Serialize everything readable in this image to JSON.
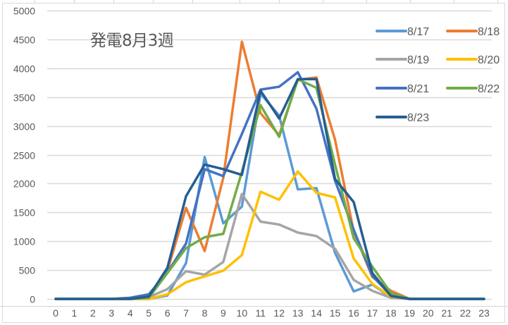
{
  "chart_data": {
    "type": "line",
    "title": "発電8月3週",
    "xlabel": "",
    "ylabel": "",
    "ylim": [
      0,
      5000
    ],
    "yticks": [
      0,
      500,
      1000,
      1500,
      2000,
      2500,
      3000,
      3500,
      4000,
      4500,
      5000
    ],
    "grid": true,
    "legend_position": "top-right (inside plot)",
    "x": [
      0,
      1,
      2,
      3,
      4,
      5,
      6,
      7,
      8,
      9,
      10,
      11,
      12,
      13,
      14,
      15,
      16,
      17,
      18,
      19,
      20,
      21,
      22,
      23
    ],
    "series": [
      {
        "name": "8/17",
        "color": "#5b9bd5",
        "values": [
          0,
          0,
          0,
          0,
          0,
          0,
          60,
          620,
          2460,
          1310,
          1600,
          3560,
          3180,
          1900,
          1920,
          800,
          130,
          250,
          30,
          0,
          0,
          0,
          0,
          0
        ]
      },
      {
        "name": "8/18",
        "color": "#ed7d31",
        "values": [
          0,
          0,
          0,
          0,
          0,
          20,
          490,
          1580,
          830,
          2100,
          4460,
          3220,
          2840,
          3800,
          3840,
          2760,
          1170,
          380,
          140,
          0,
          0,
          0,
          0,
          0
        ]
      },
      {
        "name": "8/19",
        "color": "#a5a5a5",
        "values": [
          0,
          0,
          0,
          0,
          0,
          30,
          170,
          480,
          420,
          640,
          1820,
          1340,
          1290,
          1150,
          1090,
          870,
          330,
          140,
          20,
          0,
          0,
          0,
          0,
          0
        ]
      },
      {
        "name": "8/20",
        "color": "#ffc000",
        "values": [
          0,
          0,
          0,
          0,
          0,
          0,
          80,
          290,
          390,
          490,
          760,
          1860,
          1720,
          2210,
          1840,
          1760,
          700,
          260,
          40,
          0,
          0,
          0,
          0,
          0
        ]
      },
      {
        "name": "8/21",
        "color": "#4472c4",
        "values": [
          0,
          0,
          0,
          0,
          20,
          80,
          460,
          960,
          2250,
          2130,
          2860,
          3630,
          3680,
          3930,
          3300,
          2050,
          1200,
          400,
          60,
          0,
          0,
          0,
          0,
          0
        ]
      },
      {
        "name": "8/22",
        "color": "#70ad47",
        "values": [
          0,
          0,
          0,
          0,
          0,
          20,
          450,
          880,
          1070,
          1130,
          2200,
          3360,
          2810,
          3810,
          3660,
          2330,
          1050,
          560,
          100,
          0,
          0,
          0,
          0,
          0
        ]
      },
      {
        "name": "8/23",
        "color": "#255e91",
        "values": [
          0,
          0,
          0,
          0,
          0,
          40,
          540,
          1780,
          2330,
          2250,
          2150,
          3610,
          3130,
          3810,
          3810,
          2080,
          1680,
          450,
          50,
          0,
          0,
          0,
          0,
          0
        ]
      }
    ]
  },
  "legend": {
    "items": [
      {
        "label": "8/17",
        "color": "#5b9bd5"
      },
      {
        "label": "8/18",
        "color": "#ed7d31"
      },
      {
        "label": "8/19",
        "color": "#a5a5a5"
      },
      {
        "label": "8/20",
        "color": "#ffc000"
      },
      {
        "label": "8/21",
        "color": "#4472c4"
      },
      {
        "label": "8/22",
        "color": "#70ad47"
      },
      {
        "label": "8/23",
        "color": "#255e91"
      }
    ]
  }
}
